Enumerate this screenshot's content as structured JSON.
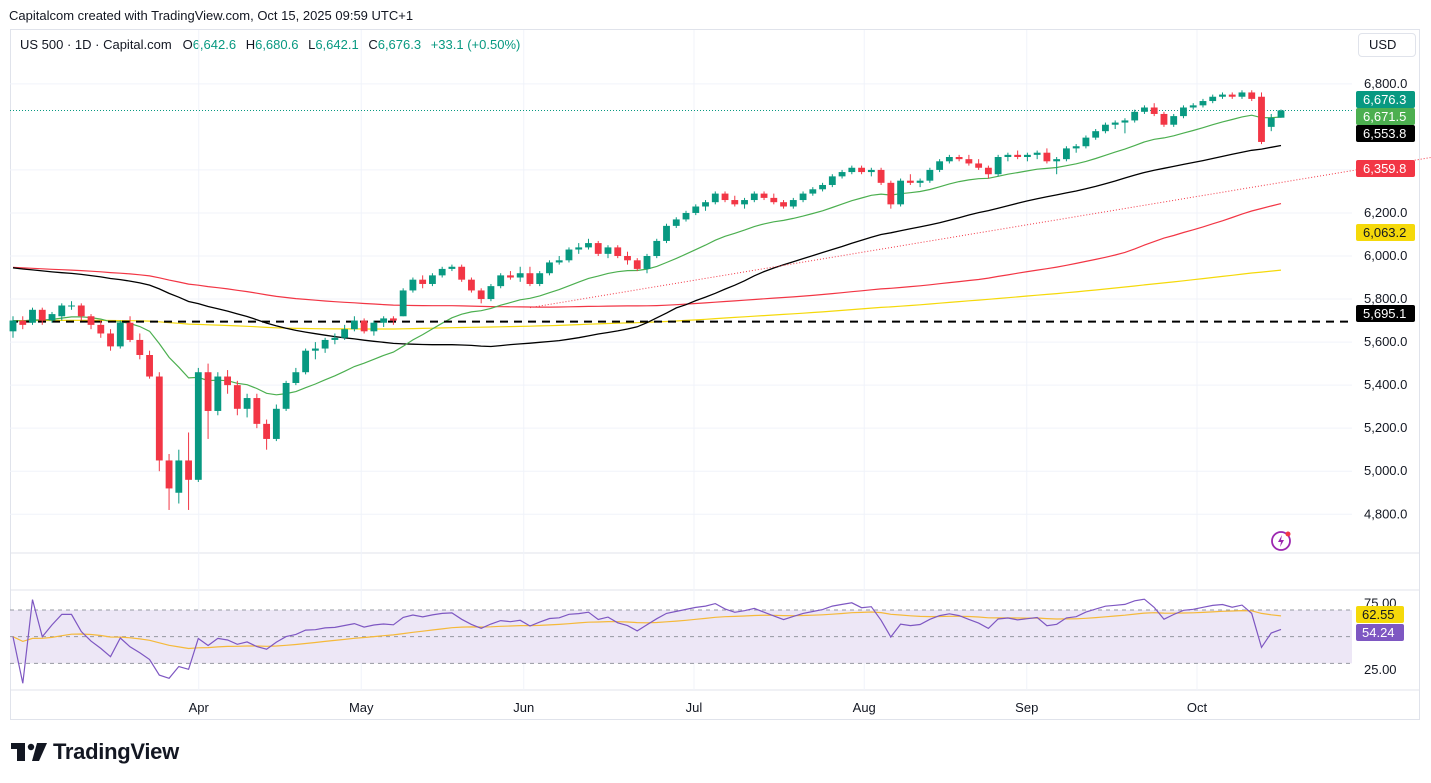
{
  "header": {
    "credit": "Capitalcom created with TradingView.com, Oct 15, 2025 09:59 UTC+1"
  },
  "legend": {
    "symbol": "US 500 · 1D · Capital.com",
    "open_label": "O",
    "open": "6,642.6",
    "high_label": "H",
    "high": "6,680.6",
    "low_label": "L",
    "low": "6,642.1",
    "close_label": "C",
    "close": "6,676.3",
    "change": "+33.1 (+0.50%)"
  },
  "currency": "USD",
  "footer": {
    "brand": "TradingView"
  },
  "colors": {
    "up": "#089981",
    "down": "#f23645",
    "ema20": "#4caf50",
    "sma50": "#000000",
    "sma100": "#f23645",
    "sma200": "#f5d90a",
    "rsi": "#7e57c2",
    "rsi_ma": "#f5b93a",
    "rsi_band": "#ede7f6",
    "trendline": "#f23645"
  },
  "chart_data": [
    {
      "type": "candlestick",
      "title": "US 500 · 1D · Capital.com",
      "x_labels": [
        "Apr",
        "May",
        "Jun",
        "Jul",
        "Aug",
        "Sep",
        "Oct"
      ],
      "yticks": [
        4800,
        5000,
        5200,
        5400,
        5600,
        5800,
        6000,
        6200,
        6400,
        6800
      ],
      "ytick_labels": [
        "4,800.0",
        "5,000.0",
        "5,200.0",
        "5,400.0",
        "5,600.0",
        "5,800.0",
        "6,000.0",
        "6,200.0",
        "6,400.0",
        "6,800.0"
      ],
      "ylim": [
        4620,
        6920
      ],
      "grid": true,
      "ohlc": [
        [
          5650,
          5720,
          5620,
          5700
        ],
        [
          5700,
          5720,
          5660,
          5680
        ],
        [
          5690,
          5760,
          5680,
          5750
        ],
        [
          5750,
          5760,
          5680,
          5700
        ],
        [
          5700,
          5740,
          5690,
          5730
        ],
        [
          5720,
          5780,
          5700,
          5770
        ],
        [
          5770,
          5790,
          5750,
          5770
        ],
        [
          5770,
          5780,
          5700,
          5720
        ],
        [
          5720,
          5730,
          5660,
          5680
        ],
        [
          5680,
          5700,
          5620,
          5640
        ],
        [
          5640,
          5660,
          5560,
          5580
        ],
        [
          5580,
          5700,
          5570,
          5690
        ],
        [
          5690,
          5720,
          5600,
          5610
        ],
        [
          5610,
          5640,
          5520,
          5540
        ],
        [
          5540,
          5560,
          5430,
          5440
        ],
        [
          5440,
          5460,
          5000,
          5050
        ],
        [
          5050,
          5080,
          4820,
          4920
        ],
        [
          4900,
          5100,
          4850,
          5050
        ],
        [
          5050,
          5180,
          4820,
          4960
        ],
        [
          4960,
          5480,
          4950,
          5460
        ],
        [
          5460,
          5500,
          5150,
          5280
        ],
        [
          5280,
          5460,
          5260,
          5440
        ],
        [
          5440,
          5470,
          5360,
          5400
        ],
        [
          5400,
          5420,
          5260,
          5290
        ],
        [
          5290,
          5360,
          5250,
          5340
        ],
        [
          5340,
          5360,
          5200,
          5220
        ],
        [
          5220,
          5240,
          5100,
          5150
        ],
        [
          5150,
          5310,
          5140,
          5290
        ],
        [
          5290,
          5420,
          5280,
          5410
        ],
        [
          5410,
          5480,
          5400,
          5460
        ],
        [
          5460,
          5570,
          5450,
          5560
        ],
        [
          5560,
          5600,
          5520,
          5570
        ],
        [
          5570,
          5620,
          5550,
          5610
        ],
        [
          5610,
          5640,
          5590,
          5620
        ],
        [
          5620,
          5680,
          5610,
          5660
        ],
        [
          5660,
          5720,
          5650,
          5700
        ],
        [
          5700,
          5710,
          5640,
          5650
        ],
        [
          5650,
          5700,
          5630,
          5690
        ],
        [
          5690,
          5720,
          5670,
          5710
        ],
        [
          5710,
          5720,
          5680,
          5700
        ],
        [
          5720,
          5850,
          5720,
          5840
        ],
        [
          5840,
          5900,
          5830,
          5890
        ],
        [
          5890,
          5910,
          5850,
          5870
        ],
        [
          5870,
          5920,
          5860,
          5910
        ],
        [
          5910,
          5950,
          5900,
          5940
        ],
        [
          5940,
          5960,
          5930,
          5950
        ],
        [
          5950,
          5960,
          5880,
          5890
        ],
        [
          5890,
          5900,
          5830,
          5840
        ],
        [
          5840,
          5850,
          5780,
          5800
        ],
        [
          5800,
          5870,
          5790,
          5860
        ],
        [
          5860,
          5920,
          5850,
          5910
        ],
        [
          5910,
          5930,
          5890,
          5900
        ],
        [
          5900,
          5950,
          5880,
          5920
        ],
        [
          5920,
          5950,
          5860,
          5870
        ],
        [
          5870,
          5930,
          5860,
          5920
        ],
        [
          5920,
          5980,
          5910,
          5970
        ],
        [
          5970,
          6000,
          5960,
          5980
        ],
        [
          5980,
          6040,
          5970,
          6030
        ],
        [
          6030,
          6060,
          6010,
          6040
        ],
        [
          6040,
          6080,
          6030,
          6060
        ],
        [
          6060,
          6070,
          6000,
          6010
        ],
        [
          6010,
          6050,
          5990,
          6040
        ],
        [
          6040,
          6050,
          5990,
          6000
        ],
        [
          6000,
          6020,
          5960,
          5980
        ],
        [
          5980,
          5990,
          5930,
          5940
        ],
        [
          5940,
          6010,
          5920,
          6000
        ],
        [
          6000,
          6080,
          5990,
          6070
        ],
        [
          6070,
          6150,
          6060,
          6140
        ],
        [
          6140,
          6180,
          6130,
          6170
        ],
        [
          6170,
          6210,
          6160,
          6200
        ],
        [
          6200,
          6240,
          6190,
          6230
        ],
        [
          6230,
          6260,
          6210,
          6250
        ],
        [
          6250,
          6300,
          6240,
          6290
        ],
        [
          6290,
          6300,
          6250,
          6260
        ],
        [
          6260,
          6280,
          6230,
          6240
        ],
        [
          6240,
          6270,
          6220,
          6260
        ],
        [
          6260,
          6300,
          6250,
          6290
        ],
        [
          6290,
          6300,
          6260,
          6270
        ],
        [
          6270,
          6290,
          6240,
          6250
        ],
        [
          6250,
          6260,
          6220,
          6230
        ],
        [
          6230,
          6270,
          6220,
          6260
        ],
        [
          6260,
          6300,
          6250,
          6290
        ],
        [
          6290,
          6320,
          6280,
          6310
        ],
        [
          6310,
          6340,
          6300,
          6330
        ],
        [
          6330,
          6380,
          6320,
          6370
        ],
        [
          6370,
          6400,
          6360,
          6390
        ],
        [
          6390,
          6420,
          6380,
          6410
        ],
        [
          6410,
          6420,
          6380,
          6390
        ],
        [
          6390,
          6410,
          6370,
          6400
        ],
        [
          6400,
          6410,
          6330,
          6340
        ],
        [
          6340,
          6350,
          6220,
          6240
        ],
        [
          6240,
          6360,
          6230,
          6350
        ],
        [
          6350,
          6380,
          6330,
          6340
        ],
        [
          6340,
          6360,
          6320,
          6350
        ],
        [
          6350,
          6410,
          6340,
          6400
        ],
        [
          6400,
          6450,
          6390,
          6440
        ],
        [
          6440,
          6470,
          6430,
          6460
        ],
        [
          6460,
          6470,
          6440,
          6450
        ],
        [
          6450,
          6470,
          6420,
          6430
        ],
        [
          6430,
          6450,
          6400,
          6410
        ],
        [
          6410,
          6420,
          6360,
          6380
        ],
        [
          6380,
          6470,
          6370,
          6460
        ],
        [
          6460,
          6480,
          6440,
          6470
        ],
        [
          6470,
          6490,
          6450,
          6460
        ],
        [
          6460,
          6480,
          6440,
          6470
        ],
        [
          6470,
          6490,
          6450,
          6480
        ],
        [
          6480,
          6500,
          6430,
          6440
        ],
        [
          6440,
          6460,
          6380,
          6450
        ],
        [
          6450,
          6510,
          6440,
          6500
        ],
        [
          6500,
          6520,
          6480,
          6510
        ],
        [
          6510,
          6560,
          6500,
          6550
        ],
        [
          6550,
          6590,
          6540,
          6580
        ],
        [
          6580,
          6620,
          6570,
          6610
        ],
        [
          6610,
          6630,
          6590,
          6620
        ],
        [
          6620,
          6640,
          6570,
          6630
        ],
        [
          6630,
          6680,
          6620,
          6670
        ],
        [
          6670,
          6700,
          6660,
          6690
        ],
        [
          6690,
          6710,
          6650,
          6660
        ],
        [
          6660,
          6670,
          6600,
          6610
        ],
        [
          6610,
          6660,
          6600,
          6650
        ],
        [
          6650,
          6700,
          6640,
          6690
        ],
        [
          6690,
          6710,
          6680,
          6700
        ],
        [
          6700,
          6730,
          6690,
          6720
        ],
        [
          6720,
          6750,
          6710,
          6740
        ],
        [
          6740,
          6760,
          6730,
          6750
        ],
        [
          6750,
          6760,
          6730,
          6740
        ],
        [
          6740,
          6770,
          6730,
          6760
        ],
        [
          6760,
          6770,
          6720,
          6730
        ],
        [
          6740,
          6760,
          6520,
          6530
        ],
        [
          6600,
          6660,
          6580,
          6642
        ],
        [
          6642.6,
          6680.6,
          6642.1,
          6676.3
        ]
      ],
      "ema20_last": 6671.5,
      "sma50_last": 6553.8,
      "sma100_last": 6359.8,
      "sma200_last": 6063.2,
      "support_level": 5695.1,
      "price_badges": [
        {
          "label": "6,676.3",
          "value": 6676.3,
          "color": "#089981"
        },
        {
          "label": "6,671.5",
          "value": 6671.5,
          "color": "#4caf50"
        },
        {
          "label": "6,553.8",
          "value": 6553.8,
          "color": "#000000"
        },
        {
          "label": "6,359.8",
          "value": 6359.8,
          "color": "#f23645"
        },
        {
          "label": "6,063.2",
          "value": 6063.2,
          "color": "#f5d90a"
        },
        {
          "label": "5,695.1",
          "value": 5695.1,
          "color": "#000000"
        }
      ]
    },
    {
      "type": "line",
      "title": "RSI",
      "yticks": [
        25,
        75
      ],
      "ytick_labels": [
        "25.00",
        "75.00"
      ],
      "band": [
        30,
        70
      ],
      "midline": 50,
      "rsi_last": 54.24,
      "rsi_ma_last": 62.55,
      "badges": [
        {
          "label": "62.55",
          "value": 62.55,
          "color": "#f5d90a"
        },
        {
          "label": "54.24",
          "value": 54.24,
          "color": "#7e57c2"
        }
      ]
    }
  ]
}
